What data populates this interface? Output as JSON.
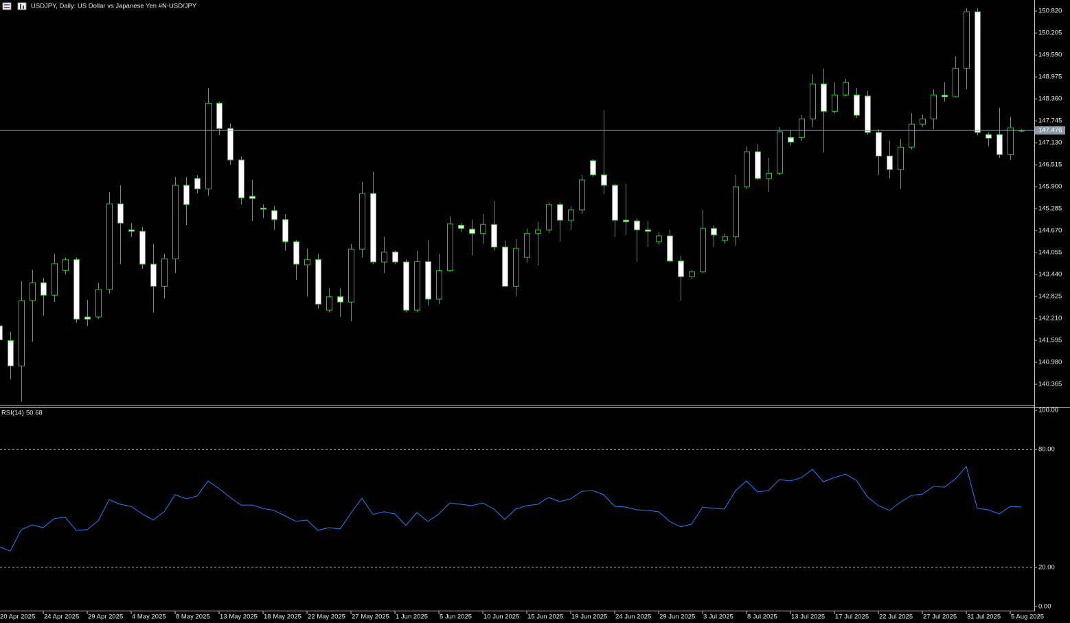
{
  "chart_data": [
    {
      "type": "candlestick",
      "title": "USDJPY, Daily:  US Dollar vs  Japanese Yen #N-USD/JPY",
      "categories": [
        "20 Apr 2025",
        null,
        null,
        null,
        "24 Apr 2025",
        null,
        null,
        null,
        "29 Apr 2025",
        null,
        null,
        null,
        "4 May 2025",
        null,
        null,
        null,
        "8 May 2025",
        null,
        null,
        null,
        "13 May 2025",
        null,
        null,
        null,
        "18 May 2025",
        null,
        null,
        null,
        "22 May 2025",
        null,
        null,
        null,
        "27 May 2025",
        null,
        null,
        null,
        "1 Jun 2025",
        null,
        null,
        null,
        "5 Jun 2025",
        null,
        null,
        null,
        "10 Jun 2025",
        null,
        null,
        null,
        "15 Jun 2025",
        null,
        null,
        null,
        "19 Jun 2025",
        null,
        null,
        null,
        "24 Jun 2025",
        null,
        null,
        null,
        "29 Jun 2025",
        null,
        null,
        null,
        "3 Jul 2025",
        null,
        null,
        null,
        "8 Jul 2025",
        null,
        null,
        null,
        "13 Jul 2025",
        null,
        null,
        null,
        "17 Jul 2025",
        null,
        null,
        null,
        "22 Jul 2025",
        null,
        null,
        null,
        "27 Jul 2025",
        null,
        null,
        null,
        "31 Jul 2025",
        null,
        null,
        null,
        "5 Aug 2025",
        null
      ],
      "open": [
        142.0,
        141.59,
        140.88,
        142.71,
        143.21,
        142.86,
        143.55,
        143.86,
        142.25,
        142.25,
        143.02,
        145.42,
        144.69,
        144.65,
        143.73,
        143.11,
        143.88,
        145.94,
        146.13,
        145.84,
        148.24,
        147.53,
        146.65,
        145.63,
        145.3,
        145.23,
        144.98,
        144.36,
        143.71,
        143.86,
        142.44,
        142.82,
        142.67,
        144.15,
        145.71,
        143.79,
        144.07,
        143.79,
        142.44,
        143.8,
        142.75,
        143.55,
        144.82,
        144.71,
        144.59,
        144.84,
        144.21,
        143.11,
        143.92,
        144.59,
        144.69,
        145.4,
        144.96,
        145.25,
        146.63,
        146.23,
        145.94,
        144.96,
        144.94,
        144.69,
        144.36,
        144.52,
        143.82,
        143.38,
        143.52,
        144.73,
        144.4,
        144.5,
        145.9,
        146.88,
        146.13,
        146.28,
        147.28,
        147.28,
        147.8,
        148.78,
        148.01,
        148.47,
        148.47,
        148.44,
        147.42,
        146.76,
        146.38,
        147.01,
        147.65,
        147.8,
        148.46,
        148.42,
        149.22,
        150.8,
        147.36,
        147.36,
        146.8,
        147.46
      ],
      "high": [
        142.09,
        141.84,
        143.25,
        143.57,
        143.34,
        144.02,
        143.92,
        143.92,
        142.73,
        143.21,
        145.75,
        145.94,
        144.88,
        144.78,
        144.3,
        144.02,
        146.17,
        146.17,
        146.23,
        148.67,
        148.28,
        147.67,
        146.75,
        146.09,
        145.4,
        145.36,
        145.13,
        144.4,
        144.17,
        144.02,
        143.06,
        143.06,
        144.3,
        146.03,
        146.32,
        144.5,
        144.11,
        143.86,
        144.11,
        144.4,
        144.02,
        145.07,
        144.88,
        144.98,
        145.13,
        145.5,
        144.4,
        144.44,
        144.73,
        144.92,
        145.46,
        145.46,
        145.36,
        146.23,
        146.67,
        148.05,
        145.98,
        145.98,
        145.02,
        144.94,
        144.63,
        144.69,
        143.96,
        143.57,
        145.25,
        144.82,
        144.59,
        146.23,
        147.03,
        147.09,
        146.71,
        147.57,
        147.48,
        147.9,
        149.05,
        149.21,
        148.82,
        148.92,
        148.67,
        148.59,
        147.51,
        147.19,
        147.23,
        147.96,
        147.92,
        148.63,
        148.82,
        149.55,
        150.9,
        150.9,
        147.42,
        148.11,
        147.86,
        147.51
      ],
      "low": [
        141.52,
        140.5,
        139.88,
        141.56,
        142.29,
        142.67,
        143.44,
        142.09,
        142.0,
        142.19,
        142.9,
        143.73,
        144.5,
        143.59,
        142.38,
        142.77,
        143.48,
        144.82,
        145.71,
        145.65,
        147.34,
        146.51,
        145.4,
        144.94,
        145.02,
        144.69,
        144.11,
        143.29,
        142.82,
        142.48,
        142.38,
        142.25,
        142.13,
        143.92,
        143.73,
        143.48,
        143.73,
        142.38,
        142.38,
        142.57,
        142.61,
        143.52,
        144.63,
        143.98,
        144.3,
        144.11,
        143.09,
        142.82,
        143.77,
        143.69,
        144.59,
        144.36,
        144.69,
        145.13,
        146.17,
        145.69,
        144.5,
        144.55,
        143.79,
        144.21,
        144.27,
        143.79,
        142.71,
        143.32,
        143.48,
        144.21,
        144.3,
        144.25,
        145.84,
        146.09,
        145.75,
        146.23,
        147.05,
        147.19,
        147.57,
        146.86,
        147.96,
        148.44,
        147.82,
        147.36,
        146.23,
        146.13,
        145.84,
        146.94,
        147.57,
        147.51,
        148.28,
        148.4,
        148.63,
        147.34,
        147.03,
        146.71,
        146.65,
        147.43
      ],
      "close": [
        141.61,
        140.88,
        142.71,
        143.21,
        142.86,
        143.75,
        143.86,
        142.19,
        142.19,
        143.02,
        145.42,
        144.88,
        144.65,
        143.73,
        143.11,
        143.88,
        145.94,
        145.4,
        145.84,
        148.24,
        147.53,
        146.65,
        145.59,
        145.57,
        145.27,
        144.98,
        144.36,
        143.73,
        143.86,
        142.61,
        142.82,
        142.67,
        144.15,
        145.71,
        143.79,
        144.07,
        143.79,
        142.44,
        143.8,
        142.75,
        143.55,
        144.86,
        144.73,
        144.59,
        144.84,
        144.21,
        143.11,
        144.17,
        144.59,
        144.69,
        145.4,
        144.96,
        145.25,
        146.09,
        146.23,
        145.94,
        144.96,
        144.92,
        144.69,
        144.65,
        144.52,
        143.82,
        143.38,
        143.52,
        144.73,
        144.55,
        144.5,
        145.9,
        146.88,
        146.13,
        146.28,
        147.44,
        147.15,
        147.8,
        148.78,
        148.01,
        148.47,
        148.82,
        147.9,
        147.42,
        146.76,
        146.38,
        147.01,
        147.65,
        147.8,
        148.47,
        148.42,
        149.22,
        150.8,
        147.42,
        147.26,
        146.8,
        147.55,
        147.476
      ],
      "ylim": [
        139.79,
        151.13
      ],
      "yticks": [
        {
          "value": 150.82,
          "label": "150.820"
        },
        150.205,
        {
          "value": 149.59,
          "label": "149.590"
        },
        148.975,
        {
          "value": 148.36,
          "label": "148.360"
        },
        147.745,
        {
          "value": 147.13,
          "label": "147.130"
        },
        146.515,
        {
          "value": 145.9,
          "label": "145.900"
        },
        145.285,
        {
          "value": 144.67,
          "label": "144.670"
        },
        144.055,
        {
          "value": 143.44,
          "label": "143.440"
        },
        142.825,
        {
          "value": 142.21,
          "label": "142.210"
        },
        141.595,
        {
          "value": 140.98,
          "label": "140.980"
        },
        140.365
      ],
      "color": "#00e000",
      "bear_color": "#ffffff"
    },
    {
      "type": "line",
      "name": "RSI(14)",
      "color": "#1e7fff",
      "values": [
        30.4,
        28.3,
        39.2,
        41.6,
        40.2,
        44.8,
        45.5,
        38.8,
        39.2,
        43.7,
        54.5,
        52.1,
        51.0,
        47.2,
        44.1,
        48.3,
        57.0,
        54.9,
        56.3,
        64.0,
        60.1,
        55.6,
        51.7,
        51.7,
        50.0,
        49.0,
        46.2,
        43.4,
        44.1,
        38.8,
        40.2,
        39.5,
        47.6,
        55.2,
        46.9,
        48.3,
        47.2,
        41.3,
        47.9,
        43.4,
        47.2,
        52.8,
        52.1,
        51.4,
        52.8,
        49.7,
        44.4,
        49.7,
        51.4,
        52.1,
        55.6,
        53.5,
        54.9,
        58.7,
        59.1,
        57.0,
        51.0,
        50.7,
        49.3,
        49.0,
        48.3,
        43.4,
        40.6,
        42.0,
        50.7,
        50.0,
        49.7,
        59.1,
        64.0,
        58.4,
        59.1,
        64.7,
        64.0,
        65.7,
        69.9,
        63.6,
        65.7,
        67.5,
        64.3,
        55.9,
        51.4,
        49.0,
        53.1,
        56.6,
        57.3,
        61.2,
        60.8,
        65.0,
        71.3,
        50.0,
        49.3,
        47.2,
        51.0,
        50.68
      ],
      "ylim": [
        0,
        100
      ],
      "yticks": [
        {
          "value": 100,
          "label": "100.00"
        },
        {
          "value": 80,
          "label": "80.00"
        },
        {
          "value": 20,
          "label": "20.00"
        },
        {
          "value": 0,
          "label": "0.00"
        }
      ]
    }
  ]
}
